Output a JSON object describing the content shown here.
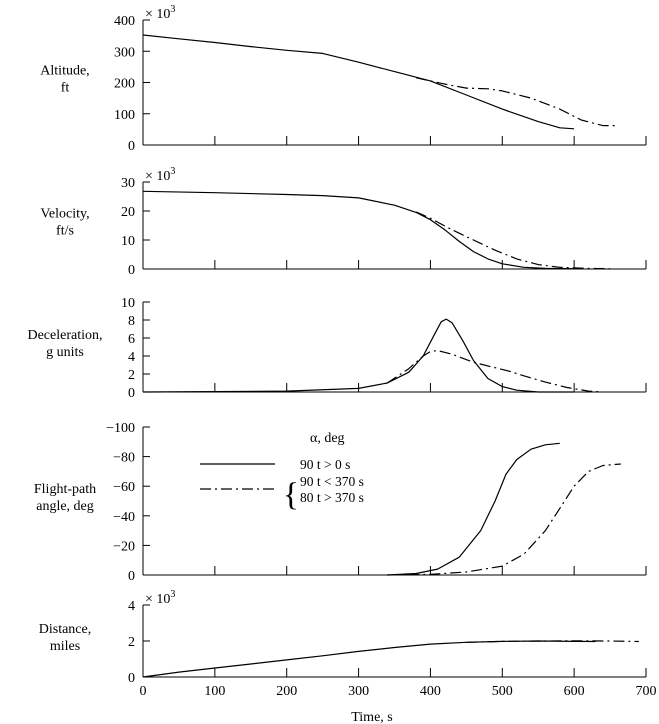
{
  "x_axis": {
    "label": "Time, s",
    "range": [
      0,
      700
    ],
    "ticks": [
      0,
      100,
      200,
      300,
      400,
      500,
      600,
      700
    ]
  },
  "legend": {
    "title": "α, deg",
    "entries": [
      {
        "style": "solid",
        "lines": [
          "90 t > 0 s"
        ]
      },
      {
        "style": "dash-dot",
        "lines": [
          "90 t < 370 s",
          "80 t > 370 s"
        ]
      }
    ]
  },
  "chart_data": [
    {
      "type": "line",
      "ylabel": [
        "Altitude,",
        "ft"
      ],
      "multiplier": "× 10",
      "multiplier_exp": "3",
      "ylim": [
        0,
        400
      ],
      "yticks": [
        0,
        100,
        200,
        300,
        400
      ],
      "xticks_labeled": false,
      "series": [
        {
          "style": "solid",
          "points": [
            [
              0,
              352
            ],
            [
              50,
              340
            ],
            [
              100,
              328
            ],
            [
              150,
              315
            ],
            [
              200,
              303
            ],
            [
              250,
              293
            ],
            [
              300,
              265
            ],
            [
              350,
              235
            ],
            [
              400,
              205
            ],
            [
              450,
              160
            ],
            [
              500,
              115
            ],
            [
              550,
              75
            ],
            [
              580,
              55
            ],
            [
              600,
              52
            ]
          ]
        },
        {
          "style": "dash-dot",
          "points": [
            [
              380,
              215
            ],
            [
              420,
              195
            ],
            [
              450,
              182
            ],
            [
              480,
              180
            ],
            [
              500,
              173
            ],
            [
              540,
              150
            ],
            [
              580,
              115
            ],
            [
              610,
              80
            ],
            [
              640,
              62
            ],
            [
              660,
              62
            ]
          ]
        }
      ]
    },
    {
      "type": "line",
      "ylabel": [
        "Velocity,",
        "ft/s"
      ],
      "multiplier": "× 10",
      "multiplier_exp": "3",
      "ylim": [
        0,
        30
      ],
      "yticks": [
        0,
        10,
        20,
        30
      ],
      "xticks_labeled": false,
      "series": [
        {
          "style": "solid",
          "points": [
            [
              0,
              26.8
            ],
            [
              100,
              26.3
            ],
            [
              200,
              25.7
            ],
            [
              250,
              25.3
            ],
            [
              300,
              24.5
            ],
            [
              350,
              22.0
            ],
            [
              380,
              19.5
            ],
            [
              400,
              17.0
            ],
            [
              420,
              13.5
            ],
            [
              440,
              9.5
            ],
            [
              460,
              6.0
            ],
            [
              480,
              3.5
            ],
            [
              500,
              1.8
            ],
            [
              530,
              0.6
            ],
            [
              560,
              0.2
            ],
            [
              600,
              0.1
            ]
          ]
        },
        {
          "style": "dash-dot",
          "points": [
            [
              380,
              19.7
            ],
            [
              400,
              17.5
            ],
            [
              430,
              13.5
            ],
            [
              460,
              10.0
            ],
            [
              490,
              6.5
            ],
            [
              520,
              3.5
            ],
            [
              550,
              1.5
            ],
            [
              580,
              0.6
            ],
            [
              620,
              0.2
            ],
            [
              650,
              0.1
            ]
          ]
        }
      ]
    },
    {
      "type": "line",
      "ylabel": [
        "Deceleration,",
        "g units"
      ],
      "multiplier": "",
      "multiplier_exp": "",
      "ylim": [
        0,
        10
      ],
      "yticks": [
        0,
        2,
        4,
        6,
        8,
        10
      ],
      "xticks_labeled": false,
      "series": [
        {
          "style": "solid",
          "points": [
            [
              0,
              0
            ],
            [
              100,
              0.05
            ],
            [
              200,
              0.1
            ],
            [
              300,
              0.4
            ],
            [
              340,
              1.0
            ],
            [
              370,
              2.2
            ],
            [
              390,
              4.0
            ],
            [
              405,
              6.3
            ],
            [
              415,
              7.8
            ],
            [
              422,
              8.1
            ],
            [
              430,
              7.7
            ],
            [
              445,
              5.7
            ],
            [
              460,
              3.5
            ],
            [
              480,
              1.5
            ],
            [
              500,
              0.6
            ],
            [
              520,
              0.2
            ],
            [
              550,
              0
            ],
            [
              600,
              0
            ]
          ]
        },
        {
          "style": "dash-dot",
          "points": [
            [
              340,
              1.0
            ],
            [
              370,
              2.6
            ],
            [
              390,
              4.0
            ],
            [
              400,
              4.5
            ],
            [
              410,
              4.6
            ],
            [
              430,
              4.2
            ],
            [
              460,
              3.3
            ],
            [
              490,
              2.7
            ],
            [
              510,
              2.3
            ],
            [
              530,
              1.8
            ],
            [
              560,
              1.1
            ],
            [
              590,
              0.5
            ],
            [
              620,
              0.1
            ],
            [
              640,
              0
            ]
          ]
        }
      ]
    },
    {
      "type": "line",
      "ylabel": [
        "Flight-path",
        "angle, deg"
      ],
      "multiplier": "",
      "multiplier_exp": "",
      "ylim": [
        0,
        -100
      ],
      "yticks": [
        0,
        -20,
        -40,
        -60,
        -80,
        -100
      ],
      "xticks_labeled": false,
      "series": [
        {
          "style": "solid",
          "points": [
            [
              340,
              0
            ],
            [
              380,
              -1.0
            ],
            [
              410,
              -4.0
            ],
            [
              440,
              -12.0
            ],
            [
              470,
              -30.0
            ],
            [
              490,
              -50.0
            ],
            [
              505,
              -68.0
            ],
            [
              520,
              -78.0
            ],
            [
              540,
              -85.0
            ],
            [
              560,
              -88.0
            ],
            [
              580,
              -89.0
            ]
          ]
        },
        {
          "style": "dash-dot",
          "points": [
            [
              340,
              0
            ],
            [
              400,
              -0.5
            ],
            [
              450,
              -2.0
            ],
            [
              500,
              -6.0
            ],
            [
              530,
              -14.0
            ],
            [
              560,
              -30.0
            ],
            [
              580,
              -45.0
            ],
            [
              600,
              -60.0
            ],
            [
              620,
              -70.0
            ],
            [
              640,
              -74.0
            ],
            [
              665,
              -75.0
            ]
          ]
        }
      ]
    },
    {
      "type": "line",
      "ylabel": [
        "Distance,",
        "miles"
      ],
      "multiplier": "× 10",
      "multiplier_exp": "3",
      "ylim": [
        0,
        4
      ],
      "yticks": [
        0,
        2,
        4
      ],
      "xticks_labeled": true,
      "series": [
        {
          "style": "solid",
          "points": [
            [
              0,
              0
            ],
            [
              50,
              0.27
            ],
            [
              100,
              0.5
            ],
            [
              150,
              0.72
            ],
            [
              200,
              0.95
            ],
            [
              250,
              1.18
            ],
            [
              300,
              1.42
            ],
            [
              350,
              1.64
            ],
            [
              400,
              1.83
            ],
            [
              450,
              1.93
            ],
            [
              500,
              1.98
            ],
            [
              550,
              2.0
            ],
            [
              600,
              1.98
            ],
            [
              630,
              1.97
            ]
          ]
        },
        {
          "style": "dash-dot",
          "points": [
            [
              450,
              1.93
            ],
            [
              500,
              1.98
            ],
            [
              550,
              2.0
            ],
            [
              600,
              2.01
            ],
            [
              650,
              2.0
            ],
            [
              690,
              1.97
            ]
          ]
        }
      ]
    }
  ]
}
